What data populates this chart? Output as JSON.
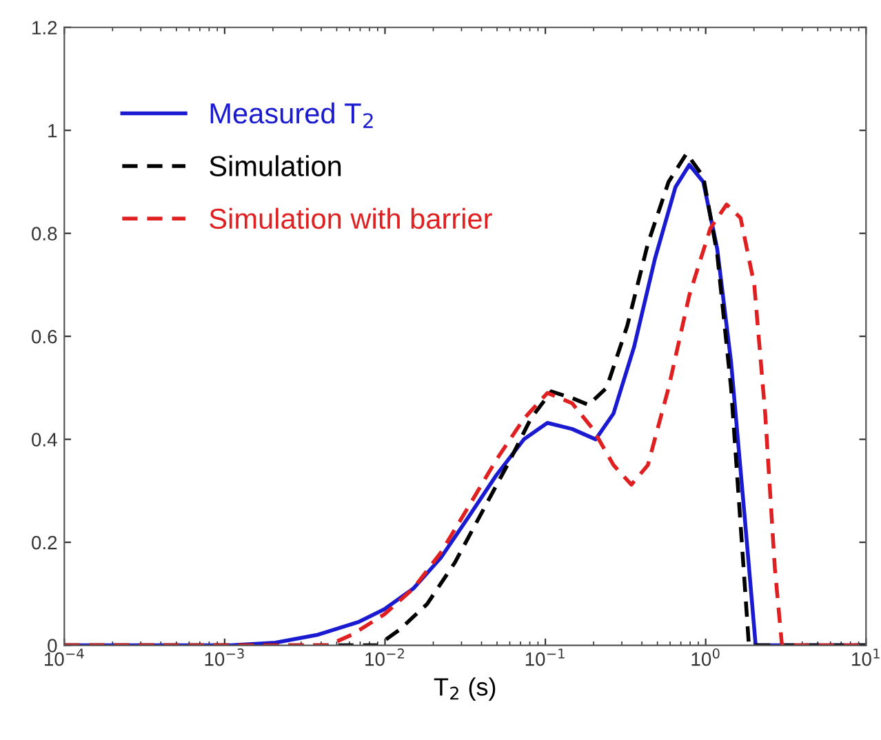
{
  "chart_data": {
    "type": "line",
    "xlabel": "T$_{2}$ (s)",
    "log": "x",
    "legend": "top left",
    "grid": false,
    "xlim": [
      0.0001,
      10
    ],
    "xticks": [
      {
        "value": 0.0001,
        "label": "10$^{−4}$"
      },
      {
        "value": 0.001,
        "label": "10$^{−3}$"
      },
      {
        "value": 0.01,
        "label": "10$^{−2}$"
      },
      {
        "value": 0.1,
        "label": "10$^{−1}$"
      },
      {
        "value": 1,
        "label": "10$^{0}$"
      },
      {
        "value": 10,
        "label": "10$^{1}$"
      }
    ],
    "ylim": [
      0,
      1.2
    ],
    "yticks": [
      0,
      0.2,
      0.4,
      0.6,
      0.8,
      1,
      1.2
    ],
    "series": [
      {
        "name": "Measured T$_{2}$",
        "color": "#1a1ad0",
        "line_style": "solid",
        "x": [
          0.0001,
          0.0011,
          0.00207,
          0.00376,
          0.0068,
          0.0099,
          0.015,
          0.0223,
          0.0333,
          0.0494,
          0.0735,
          0.103,
          0.147,
          0.206,
          0.266,
          0.358,
          0.482,
          0.648,
          0.791,
          0.966,
          1.18,
          1.44,
          1.75,
          2.05,
          10
        ],
        "values": [
          0,
          0,
          0.005,
          0.02,
          0.045,
          0.07,
          0.11,
          0.17,
          0.25,
          0.33,
          0.4,
          0.432,
          0.42,
          0.4,
          0.45,
          0.58,
          0.75,
          0.89,
          0.933,
          0.9,
          0.77,
          0.55,
          0.25,
          0,
          0
        ]
      },
      {
        "name": "Simulation",
        "color": "#000000",
        "line_style": "dashed",
        "x": [
          0.0001,
          0.009,
          0.0123,
          0.0183,
          0.0272,
          0.0405,
          0.0603,
          0.0811,
          0.109,
          0.147,
          0.186,
          0.241,
          0.324,
          0.436,
          0.587,
          0.76,
          0.966,
          1.18,
          1.44,
          1.68,
          1.86,
          10
        ],
        "values": [
          0,
          0,
          0.03,
          0.08,
          0.16,
          0.26,
          0.36,
          0.44,
          0.493,
          0.48,
          0.467,
          0.5,
          0.62,
          0.78,
          0.9,
          0.955,
          0.91,
          0.76,
          0.5,
          0.2,
          0,
          0
        ]
      },
      {
        "name": "Simulation with barrier",
        "color": "#e02020",
        "line_style": "dashed",
        "x": [
          0.0001,
          0.00441,
          0.00617,
          0.0099,
          0.015,
          0.0223,
          0.0333,
          0.0494,
          0.0735,
          0.103,
          0.147,
          0.198,
          0.266,
          0.344,
          0.436,
          0.587,
          0.791,
          1.07,
          1.35,
          1.65,
          2.01,
          2.35,
          2.7,
          2.99,
          10
        ],
        "values": [
          0,
          0,
          0.02,
          0.06,
          0.11,
          0.18,
          0.27,
          0.36,
          0.44,
          0.49,
          0.47,
          0.42,
          0.35,
          0.312,
          0.35,
          0.5,
          0.68,
          0.81,
          0.856,
          0.83,
          0.7,
          0.45,
          0.15,
          0,
          0
        ]
      }
    ]
  }
}
